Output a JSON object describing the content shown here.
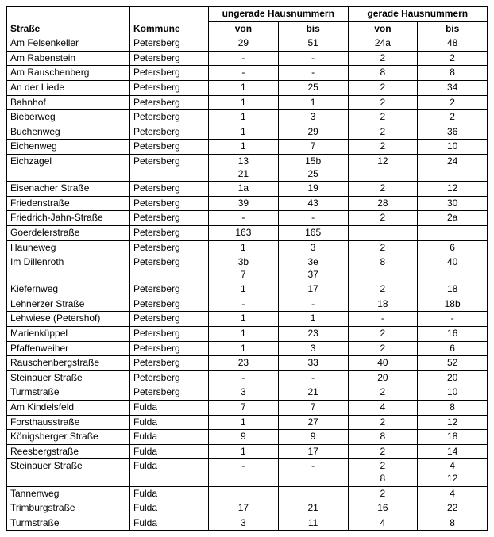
{
  "headers": {
    "strasse": "Straße",
    "kommune": "Kommune",
    "ungerade_group": "ungerade Hausnummern",
    "gerade_group": "gerade Hausnummern",
    "von": "von",
    "bis": "bis"
  },
  "rows": [
    {
      "strasse": "Am Felsenkeller",
      "kommune": "Petersberg",
      "u_von": "29",
      "u_bis": "51",
      "g_von": "24a",
      "g_bis": "48"
    },
    {
      "strasse": "Am Rabenstein",
      "kommune": "Petersberg",
      "u_von": "-",
      "u_bis": "-",
      "g_von": "2",
      "g_bis": "2"
    },
    {
      "strasse": "Am Rauschenberg",
      "kommune": "Petersberg",
      "u_von": "-",
      "u_bis": "-",
      "g_von": "8",
      "g_bis": "8"
    },
    {
      "strasse": "An der Liede",
      "kommune": "Petersberg",
      "u_von": "1",
      "u_bis": "25",
      "g_von": "2",
      "g_bis": "34"
    },
    {
      "strasse": "Bahnhof",
      "kommune": "Petersberg",
      "u_von": "1",
      "u_bis": "1",
      "g_von": "2",
      "g_bis": "2"
    },
    {
      "strasse": "Bieberweg",
      "kommune": "Petersberg",
      "u_von": "1",
      "u_bis": "3",
      "g_von": "2",
      "g_bis": "2"
    },
    {
      "strasse": "Buchenweg",
      "kommune": "Petersberg",
      "u_von": "1",
      "u_bis": "29",
      "g_von": "2",
      "g_bis": "36"
    },
    {
      "strasse": "Eichenweg",
      "kommune": "Petersberg",
      "u_von": "1",
      "u_bis": "7",
      "g_von": "2",
      "g_bis": "10"
    },
    {
      "strasse": "Eichzagel",
      "kommune": "Petersberg",
      "u_von": "13\n21",
      "u_bis": "15b\n25",
      "g_von": "12",
      "g_bis": "24"
    },
    {
      "strasse": "Eisenacher Straße",
      "kommune": "Petersberg",
      "u_von": "1a",
      "u_bis": "19",
      "g_von": "2",
      "g_bis": "12"
    },
    {
      "strasse": "Friedenstraße",
      "kommune": "Petersberg",
      "u_von": "39",
      "u_bis": "43",
      "g_von": "28",
      "g_bis": "30"
    },
    {
      "strasse": "Friedrich-Jahn-Straße",
      "kommune": "Petersberg",
      "u_von": "-",
      "u_bis": "-",
      "g_von": "2",
      "g_bis": "2a"
    },
    {
      "strasse": "Goerdelerstraße",
      "kommune": "Petersberg",
      "u_von": "163",
      "u_bis": "165",
      "g_von": "",
      "g_bis": ""
    },
    {
      "strasse": "Hauneweg",
      "kommune": "Petersberg",
      "u_von": "1",
      "u_bis": "3",
      "g_von": "2",
      "g_bis": "6"
    },
    {
      "strasse": "Im Dillenroth",
      "kommune": "Petersberg",
      "u_von": "3b\n7",
      "u_bis": "3e\n37",
      "g_von": "8",
      "g_bis": "40"
    },
    {
      "strasse": "Kiefernweg",
      "kommune": "Petersberg",
      "u_von": "1",
      "u_bis": "17",
      "g_von": "2",
      "g_bis": "18"
    },
    {
      "strasse": "Lehnerzer Straße",
      "kommune": "Petersberg",
      "u_von": "-",
      "u_bis": "-",
      "g_von": "18",
      "g_bis": "18b"
    },
    {
      "strasse": "Lehwiese (Petershof)",
      "kommune": "Petersberg",
      "u_von": "1",
      "u_bis": "1",
      "g_von": "-",
      "g_bis": "-"
    },
    {
      "strasse": "Marienküppel",
      "kommune": "Petersberg",
      "u_von": "1",
      "u_bis": "23",
      "g_von": "2",
      "g_bis": "16"
    },
    {
      "strasse": "Pfaffenweiher",
      "kommune": "Petersberg",
      "u_von": "1",
      "u_bis": "3",
      "g_von": "2",
      "g_bis": "6"
    },
    {
      "strasse": "Rauschenbergstraße",
      "kommune": "Petersberg",
      "u_von": "23",
      "u_bis": "33",
      "g_von": "40",
      "g_bis": "52"
    },
    {
      "strasse": "Steinauer Straße",
      "kommune": "Petersberg",
      "u_von": "-",
      "u_bis": "-",
      "g_von": "20",
      "g_bis": "20"
    },
    {
      "strasse": "Turmstraße",
      "kommune": "Petersberg",
      "u_von": "3",
      "u_bis": "21",
      "g_von": "2",
      "g_bis": "10"
    },
    {
      "strasse": "Am Kindelsfeld",
      "kommune": "Fulda",
      "u_von": "7",
      "u_bis": "7",
      "g_von": "4",
      "g_bis": "8"
    },
    {
      "strasse": "Forsthausstraße",
      "kommune": "Fulda",
      "u_von": "1",
      "u_bis": "27",
      "g_von": "2",
      "g_bis": "12"
    },
    {
      "strasse": "Königsberger Straße",
      "kommune": "Fulda",
      "u_von": "9",
      "u_bis": "9",
      "g_von": "8",
      "g_bis": "18"
    },
    {
      "strasse": "Reesbergstraße",
      "kommune": "Fulda",
      "u_von": "1",
      "u_bis": "17",
      "g_von": "2",
      "g_bis": "14"
    },
    {
      "strasse": "Steinauer Straße",
      "kommune": "Fulda",
      "u_von": "-",
      "u_bis": "-",
      "g_von": "2\n8",
      "g_bis": "4\n12"
    },
    {
      "strasse": "Tannenweg",
      "kommune": "Fulda",
      "u_von": "",
      "u_bis": "",
      "g_von": "2",
      "g_bis": "4"
    },
    {
      "strasse": "Trimburgstraße",
      "kommune": "Fulda",
      "u_von": "17",
      "u_bis": "21",
      "g_von": "16",
      "g_bis": "22"
    },
    {
      "strasse": "Turmstraße",
      "kommune": "Fulda",
      "u_von": "3",
      "u_bis": "11",
      "g_von": "4",
      "g_bis": "8"
    }
  ]
}
